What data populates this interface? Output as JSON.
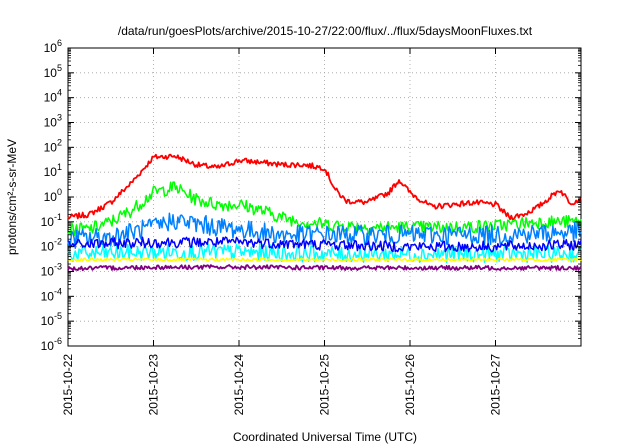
{
  "chart_data": {
    "type": "line",
    "title": "/data/run/goesPlots/archive/2015-10-27/22:00/flux/../flux/5daysMoonFluxes.txt",
    "xlabel": "Coordinated Universal Time (UTC)",
    "ylabel": "protons/cm²-s-sr-MeV",
    "x_ticks": [
      "2015-10-22",
      "2015-10-23",
      "2015-10-24",
      "2015-10-25",
      "2015-10-26",
      "2015-10-27"
    ],
    "xlim": [
      "2015-10-22 00:00",
      "2015-10-28 00:00"
    ],
    "y_scale": "log",
    "ylim": [
      1e-06,
      1000000.0
    ],
    "y_ticks": [
      {
        "base": "10",
        "exp": "-6",
        "value": 1e-06
      },
      {
        "base": "10",
        "exp": "-5",
        "value": 1e-05
      },
      {
        "base": "10",
        "exp": "-4",
        "value": 0.0001
      },
      {
        "base": "10",
        "exp": "-3",
        "value": 0.001
      },
      {
        "base": "10",
        "exp": "-2",
        "value": 0.01
      },
      {
        "base": "10",
        "exp": "-1",
        "value": 0.1
      },
      {
        "base": "10",
        "exp": "0",
        "value": 1
      },
      {
        "base": "10",
        "exp": "1",
        "value": 10
      },
      {
        "base": "10",
        "exp": "2",
        "value": 100
      },
      {
        "base": "10",
        "exp": "3",
        "value": 1000
      },
      {
        "base": "10",
        "exp": "4",
        "value": 10000
      },
      {
        "base": "10",
        "exp": "5",
        "value": 100000
      },
      {
        "base": "10",
        "exp": "6",
        "value": 1000000
      }
    ],
    "grid": true,
    "series": [
      {
        "color": "#ff0000",
        "noise": 0.05,
        "x": [
          "2015-10-22 00:00",
          "2015-10-22 06:00",
          "2015-10-22 12:00",
          "2015-10-22 18:00",
          "2015-10-23 00:00",
          "2015-10-23 06:00",
          "2015-10-23 12:00",
          "2015-10-23 18:00",
          "2015-10-24 00:00",
          "2015-10-24 06:00",
          "2015-10-24 12:00",
          "2015-10-24 18:00",
          "2015-10-25 00:00",
          "2015-10-25 03:00",
          "2015-10-25 06:00",
          "2015-10-25 12:00",
          "2015-10-25 18:00",
          "2015-10-25 21:00",
          "2015-10-26 00:00",
          "2015-10-26 06:00",
          "2015-10-26 12:00",
          "2015-10-26 18:00",
          "2015-10-27 00:00",
          "2015-10-27 04:00",
          "2015-10-27 08:00",
          "2015-10-27 12:00",
          "2015-10-27 18:00",
          "2015-10-27 21:00",
          "2015-10-27 23:59"
        ],
        "y": [
          0.15,
          0.2,
          0.6,
          4,
          40,
          45,
          20,
          15,
          30,
          25,
          20,
          20,
          15,
          2,
          0.7,
          0.6,
          1.5,
          5,
          1.5,
          0.4,
          0.5,
          0.6,
          0.5,
          0.15,
          0.2,
          0.4,
          2,
          0.6,
          0.8
        ]
      },
      {
        "color": "#00ff00",
        "noise": 0.12,
        "x": [
          "2015-10-22 00:00",
          "2015-10-22 06:00",
          "2015-10-22 12:00",
          "2015-10-22 18:00",
          "2015-10-23 00:00",
          "2015-10-23 06:00",
          "2015-10-23 12:00",
          "2015-10-23 18:00",
          "2015-10-24 00:00",
          "2015-10-24 06:00",
          "2015-10-24 12:00",
          "2015-10-24 18:00",
          "2015-10-25 00:00",
          "2015-10-25 12:00",
          "2015-10-26 00:00",
          "2015-10-26 12:00",
          "2015-10-27 00:00",
          "2015-10-27 12:00",
          "2015-10-27 23:59"
        ],
        "y": [
          0.05,
          0.05,
          0.1,
          0.3,
          1.5,
          2.5,
          0.8,
          0.5,
          0.5,
          0.3,
          0.15,
          0.1,
          0.08,
          0.06,
          0.06,
          0.06,
          0.07,
          0.1,
          0.1
        ]
      },
      {
        "color": "#00ffff",
        "noise": 0.15,
        "x": [
          "2015-10-22 00:00",
          "2015-10-23 00:00",
          "2015-10-24 00:00",
          "2015-10-25 00:00",
          "2015-10-26 00:00",
          "2015-10-27 00:00",
          "2015-10-27 23:59"
        ],
        "y": [
          0.005,
          0.006,
          0.006,
          0.005,
          0.005,
          0.005,
          0.005
        ]
      },
      {
        "color": "#0080ff",
        "noise": 0.18,
        "x": [
          "2015-10-22 00:00",
          "2015-10-22 12:00",
          "2015-10-23 00:00",
          "2015-10-23 06:00",
          "2015-10-23 12:00",
          "2015-10-24 00:00",
          "2015-10-24 12:00",
          "2015-10-25 00:00",
          "2015-10-26 00:00",
          "2015-10-27 00:00",
          "2015-10-27 23:59"
        ],
        "y": [
          0.02,
          0.025,
          0.06,
          0.12,
          0.08,
          0.05,
          0.03,
          0.03,
          0.03,
          0.03,
          0.04
        ]
      },
      {
        "color": "#0000ff",
        "noise": 0.1,
        "x": [
          "2015-10-22 00:00",
          "2015-10-23 00:00",
          "2015-10-24 00:00",
          "2015-10-25 00:00",
          "2015-10-26 00:00",
          "2015-10-27 00:00",
          "2015-10-27 23:59"
        ],
        "y": [
          0.012,
          0.015,
          0.015,
          0.012,
          0.01,
          0.01,
          0.012
        ]
      },
      {
        "color": "#ffff00",
        "noise": 0.03,
        "x": [
          "2015-10-22 00:00",
          "2015-10-24 00:00",
          "2015-10-26 00:00",
          "2015-10-27 23:59"
        ],
        "y": [
          0.003,
          0.003,
          0.003,
          0.003
        ]
      },
      {
        "color": "#800080",
        "noise": 0.04,
        "x": [
          "2015-10-22 00:00",
          "2015-10-23 00:00",
          "2015-10-24 00:00",
          "2015-10-25 00:00",
          "2015-10-26 00:00",
          "2015-10-27 00:00",
          "2015-10-27 23:59"
        ],
        "y": [
          0.0013,
          0.0015,
          0.0015,
          0.0014,
          0.0014,
          0.0014,
          0.0014
        ]
      }
    ]
  }
}
